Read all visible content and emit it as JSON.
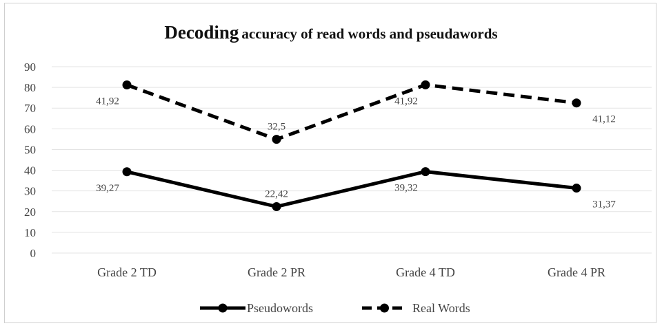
{
  "chart_data": {
    "type": "line",
    "title": "accuracy of read words and pseudawords",
    "title_prefix": "Decoding",
    "categories": [
      "Grade 2 TD",
      "Grade 2 PR",
      "Grade 4 TD",
      "Grade 4 PR"
    ],
    "ylim": [
      0,
      90
    ],
    "yticks": [
      0,
      10,
      20,
      30,
      40,
      50,
      60,
      70,
      80,
      90
    ],
    "grid": true,
    "legend": "bottom",
    "series": [
      {
        "name": "Pseudowords",
        "style": "solid",
        "color": "#000000",
        "values": [
          39.27,
          22.42,
          39.32,
          31.37
        ],
        "labels": [
          "39,27",
          "22,42",
          "39,32",
          "31,37"
        ]
      },
      {
        "name": "Real Words",
        "style": "dashed",
        "color": "#000000",
        "values": [
          81.19,
          54.92,
          81.24,
          72.49
        ],
        "labels": [
          "41,92",
          "32,5",
          "41,92",
          "41,12"
        ]
      }
    ]
  }
}
